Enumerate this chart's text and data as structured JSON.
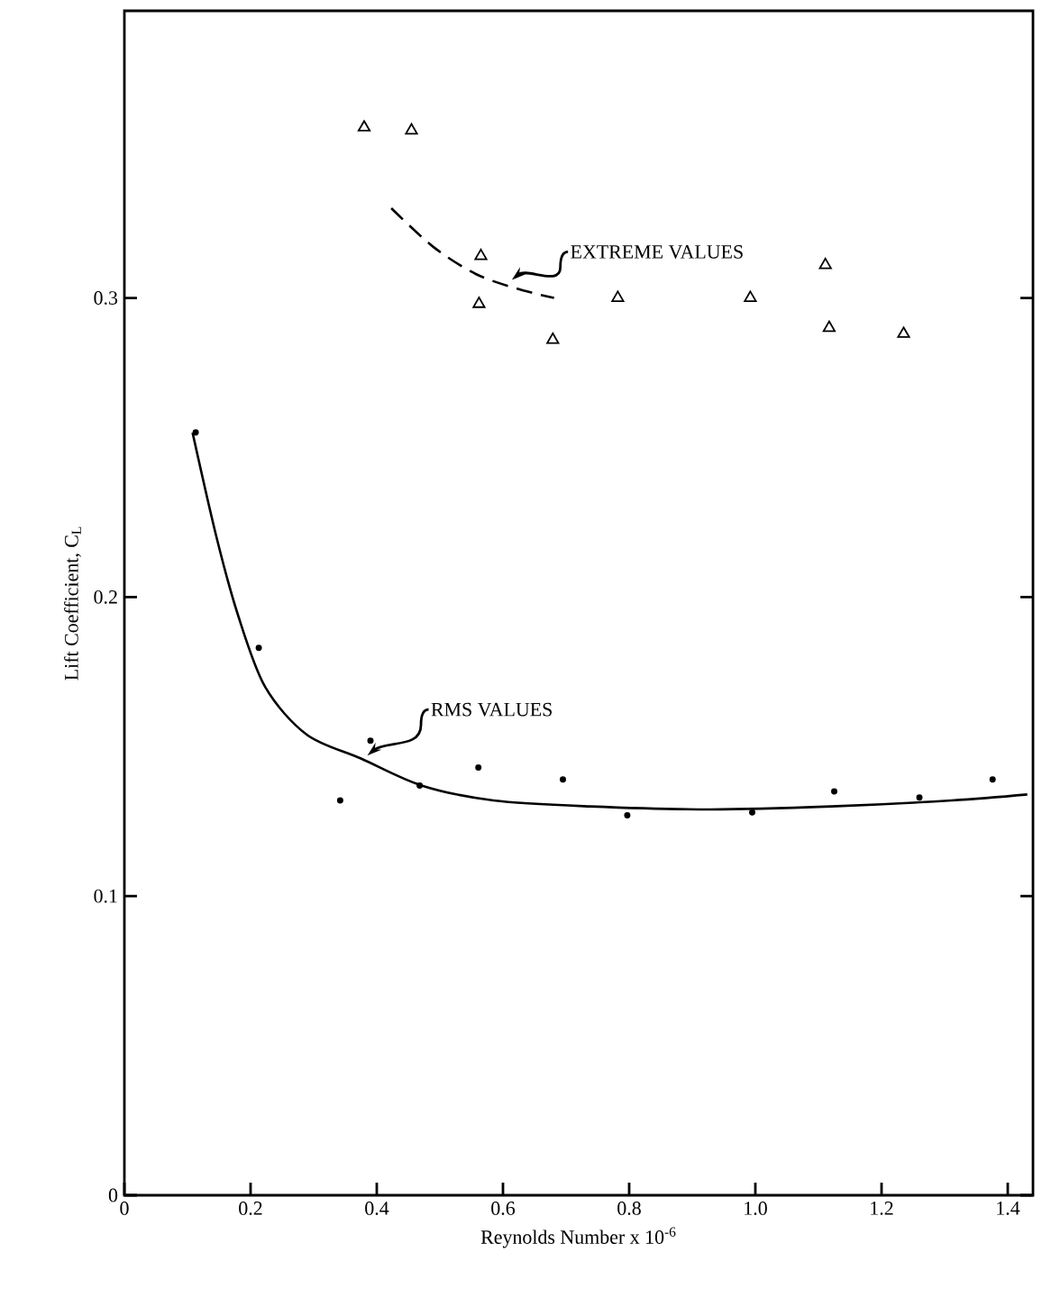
{
  "chart_data": {
    "type": "scatter",
    "xlabel": "Reynolds Number x 10$^{-6}$",
    "ylabel": "Lift Coefficient, C$_{L}$",
    "xlim": [
      0,
      1.44
    ],
    "ylim": [
      0,
      0.396
    ],
    "xticks": [
      0,
      0.2,
      0.4,
      0.6,
      0.8,
      {
        "value": 1.0,
        "label": "1.0"
      },
      1.2,
      1.4
    ],
    "yticks": [
      0,
      0.1,
      0.2,
      0.3
    ],
    "grid": false,
    "series": [
      {
        "marker": "circle",
        "color": "#000000",
        "x": [
          0.113,
          0.213,
          0.342,
          0.39,
          0.468,
          0.561,
          0.695,
          0.797,
          0.995,
          1.125,
          1.26,
          1.376
        ],
        "values": [
          0.255,
          0.183,
          0.132,
          0.152,
          0.137,
          0.143,
          0.139,
          0.127,
          0.128,
          0.135,
          0.133,
          0.139
        ]
      },
      {
        "type": "line",
        "line_style": "solid",
        "marker": "none",
        "color": "#000000",
        "x": [
          0.108,
          0.146,
          0.18,
          0.223,
          0.289,
          0.375,
          0.471,
          0.585,
          0.738,
          0.929,
          1.12,
          1.311,
          1.431
        ],
        "values": [
          0.255,
          0.22,
          0.194,
          0.17,
          0.154,
          0.146,
          0.137,
          0.132,
          0.13,
          0.129,
          0.13,
          0.132,
          0.134
        ]
      },
      {
        "marker": "triangle",
        "color": "#000000",
        "x": [
          0.38,
          0.455,
          0.565,
          0.562,
          0.679,
          0.782,
          0.992,
          1.111,
          1.117,
          1.235
        ],
        "values": [
          0.357,
          0.356,
          0.314,
          0.298,
          0.286,
          0.3,
          0.3,
          0.311,
          0.29,
          0.288
        ]
      },
      {
        "type": "line",
        "line_style": "dashed",
        "marker": "none",
        "color": "#000000",
        "x": [
          0.423,
          0.49,
          0.557,
          0.624,
          0.681
        ],
        "values": [
          0.33,
          0.317,
          0.308,
          0.303,
          0.3
        ]
      }
    ],
    "annotations": [
      {
        "text": "EXTREME VALUES",
        "x": 0.614,
        "y": 0.306
      },
      {
        "text": "RMS VALUES",
        "x": 0.385,
        "y": 0.147
      }
    ]
  }
}
